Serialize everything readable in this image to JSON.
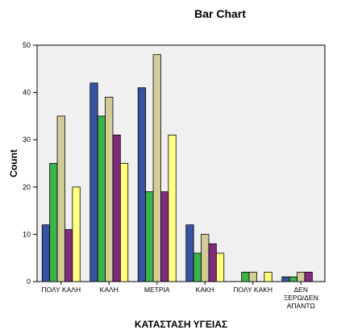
{
  "chart_data": {
    "type": "bar",
    "title": "Bar Chart",
    "xlabel": "ΚΑΤΑΣΤΑΣΗ ΥΓΕΙΑΣ",
    "ylabel": "Count",
    "ylim": [
      0,
      50
    ],
    "yticks": [
      0,
      10,
      20,
      30,
      40,
      50
    ],
    "grid": false,
    "legend": "none",
    "categories": [
      [
        "ΠΟΛΥ ΚΑΛΗ"
      ],
      [
        "ΚΑΛΗ"
      ],
      [
        "ΜΕΤΡΙΑ"
      ],
      [
        "ΚΑΚΗ"
      ],
      [
        "ΠΟΛΥ ΚΑΚΗ"
      ],
      [
        "ΔΕΝ",
        "ΞΕΡΩ/ΔΕΝ",
        "ΑΠΑΝΤΩ"
      ]
    ],
    "series": [
      {
        "color": "#3953a4",
        "values": [
          12,
          42,
          41,
          12,
          0,
          1
        ]
      },
      {
        "color": "#3bb54a",
        "values": [
          25,
          35,
          19,
          6,
          2,
          1
        ]
      },
      {
        "color": "#d4cc98",
        "values": [
          35,
          39,
          48,
          10,
          2,
          2
        ]
      },
      {
        "color": "#7d2c7e",
        "values": [
          11,
          31,
          19,
          8,
          0,
          2
        ]
      },
      {
        "color": "#ffff80",
        "values": [
          20,
          25,
          31,
          6,
          2,
          0
        ]
      }
    ],
    "plot_background": "#f0f0f0"
  }
}
